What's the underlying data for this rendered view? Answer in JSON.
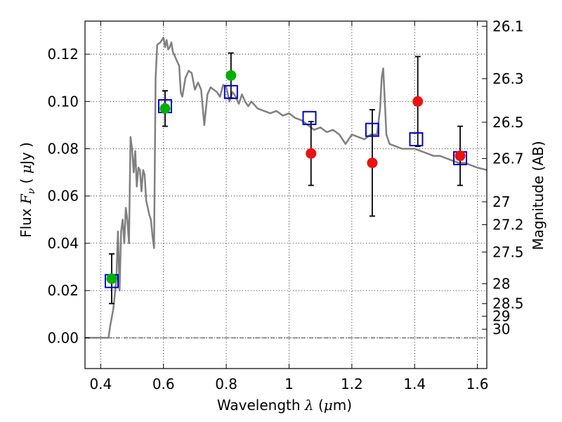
{
  "chart_data": {
    "type": "scatter",
    "xlabel": "Wavelength",
    "xlabel_symbol": "λ",
    "xlabel_unit_open": "(",
    "xlabel_unit_mu": "μ",
    "xlabel_unit_rest": "m)",
    "ylabel_prefix": "Flux",
    "ylabel_symbol": "F",
    "ylabel_sub": "ν",
    "ylabel_paren_open": "(",
    "ylabel_mu": "μ",
    "ylabel_unit_rest": "Jy )",
    "y2label": "Magnitude (AB)",
    "xlim": [
      0.35,
      1.63
    ],
    "ylim": [
      -0.013,
      0.134
    ],
    "grid": true,
    "x_ticks": [
      {
        "value": 0.4,
        "label": "0.4"
      },
      {
        "value": 0.6,
        "label": "0.6"
      },
      {
        "value": 0.8,
        "label": "0.8"
      },
      {
        "value": 1.0,
        "label": "1"
      },
      {
        "value": 1.2,
        "label": "1.2"
      },
      {
        "value": 1.4,
        "label": "1.4"
      },
      {
        "value": 1.6,
        "label": "1.6"
      }
    ],
    "y_ticks": [
      {
        "value": 0.0,
        "label": "0.00"
      },
      {
        "value": 0.02,
        "label": "0.02"
      },
      {
        "value": 0.04,
        "label": "0.04"
      },
      {
        "value": 0.06,
        "label": "0.06"
      },
      {
        "value": 0.08,
        "label": "0.08"
      },
      {
        "value": 0.1,
        "label": "0.10"
      },
      {
        "value": 0.12,
        "label": "0.12"
      }
    ],
    "mag_ticks": [
      {
        "mag": 26.1,
        "label": "26.1"
      },
      {
        "mag": 26.3,
        "label": "26.3"
      },
      {
        "mag": 26.5,
        "label": "26.5"
      },
      {
        "mag": 26.7,
        "label": "26.7"
      },
      {
        "mag": 27,
        "label": "27"
      },
      {
        "mag": 27.2,
        "label": "27.2"
      },
      {
        "mag": 27.5,
        "label": "27.5"
      },
      {
        "mag": 28,
        "label": "28"
      },
      {
        "mag": 28.5,
        "label": "28.5"
      },
      {
        "mag": 29,
        "label": "29"
      },
      {
        "mag": 30,
        "label": "30"
      }
    ],
    "sed_model": {
      "name": "SED model",
      "color": "#808080",
      "x": [
        0.35,
        0.425,
        0.43,
        0.44,
        0.45,
        0.455,
        0.46,
        0.465,
        0.47,
        0.475,
        0.48,
        0.485,
        0.49,
        0.495,
        0.5,
        0.505,
        0.51,
        0.515,
        0.52,
        0.525,
        0.53,
        0.535,
        0.54,
        0.545,
        0.55,
        0.555,
        0.56,
        0.565,
        0.57,
        0.575,
        0.58,
        0.59,
        0.6,
        0.605,
        0.61,
        0.615,
        0.62,
        0.625,
        0.63,
        0.64,
        0.65,
        0.655,
        0.66,
        0.67,
        0.68,
        0.69,
        0.7,
        0.71,
        0.72,
        0.73,
        0.74,
        0.75,
        0.76,
        0.77,
        0.78,
        0.79,
        0.8,
        0.81,
        0.82,
        0.83,
        0.84,
        0.85,
        0.86,
        0.87,
        0.88,
        0.9,
        0.92,
        0.94,
        0.96,
        0.98,
        1.0,
        1.02,
        1.04,
        1.06,
        1.08,
        1.1,
        1.12,
        1.14,
        1.16,
        1.18,
        1.2,
        1.22,
        1.24,
        1.26,
        1.28,
        1.29,
        1.295,
        1.3,
        1.305,
        1.31,
        1.32,
        1.34,
        1.36,
        1.38,
        1.4,
        1.42,
        1.44,
        1.46,
        1.48,
        1.5,
        1.52,
        1.54,
        1.56,
        1.58,
        1.6,
        1.63
      ],
      "y": [
        0.0,
        0.0,
        0.005,
        0.012,
        0.025,
        0.045,
        0.02,
        0.045,
        0.05,
        0.04,
        0.055,
        0.05,
        0.04,
        0.085,
        0.08,
        0.07,
        0.079,
        0.064,
        0.072,
        0.071,
        0.062,
        0.071,
        0.069,
        0.058,
        0.055,
        0.052,
        0.05,
        0.043,
        0.038,
        0.11,
        0.124,
        0.125,
        0.127,
        0.123,
        0.126,
        0.122,
        0.123,
        0.125,
        0.121,
        0.118,
        0.115,
        0.104,
        0.102,
        0.11,
        0.113,
        0.112,
        0.105,
        0.108,
        0.105,
        0.09,
        0.103,
        0.106,
        0.105,
        0.104,
        0.102,
        0.107,
        0.106,
        0.1,
        0.104,
        0.102,
        0.099,
        0.103,
        0.1,
        0.098,
        0.1,
        0.097,
        0.096,
        0.095,
        0.096,
        0.094,
        0.095,
        0.093,
        0.092,
        0.09,
        0.088,
        0.089,
        0.087,
        0.088,
        0.086,
        0.082,
        0.086,
        0.085,
        0.084,
        0.086,
        0.086,
        0.097,
        0.11,
        0.114,
        0.1,
        0.086,
        0.082,
        0.081,
        0.08,
        0.08,
        0.08,
        0.079,
        0.078,
        0.077,
        0.077,
        0.076,
        0.075,
        0.074,
        0.074,
        0.073,
        0.072,
        0.071
      ]
    },
    "series": [
      {
        "name": "model photometry",
        "marker": "open-square",
        "color": "#0000cc",
        "x": [
          0.435,
          0.605,
          0.815,
          1.065,
          1.265,
          1.405,
          1.545
        ],
        "y": [
          0.024,
          0.098,
          0.104,
          0.093,
          0.088,
          0.084,
          0.076
        ]
      },
      {
        "name": "detections",
        "marker": "filled-circle",
        "color": "#00b000",
        "x": [
          0.435,
          0.605,
          0.815
        ],
        "y": [
          0.025,
          0.097,
          0.111
        ],
        "yerr": [
          0.0105,
          0.0075,
          0.0095
        ]
      },
      {
        "name": "non-detections",
        "marker": "filled-circle",
        "color": "#ee1111",
        "x": [
          1.07,
          1.265,
          1.41,
          1.545
        ],
        "y": [
          0.078,
          0.074,
          0.1,
          0.077
        ],
        "yerr": [
          0.0135,
          0.0225,
          0.019,
          0.0125
        ]
      }
    ]
  }
}
